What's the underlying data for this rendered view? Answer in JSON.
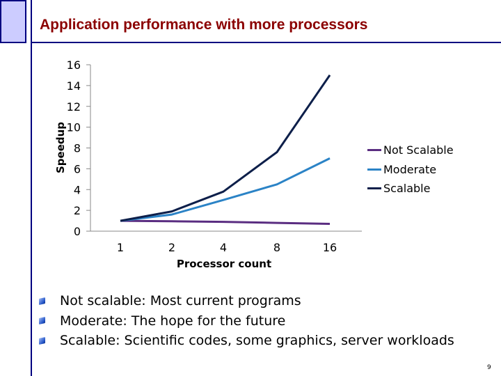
{
  "slide": {
    "title": "Application performance with more processors",
    "page_number": "9",
    "bullets": [
      "Not scalable: Most current programs",
      "Moderate: The hope for the future",
      "Scalable: Scientific codes, some graphics, server workloads"
    ]
  },
  "chart_data": {
    "type": "line",
    "title": "",
    "xlabel": "Processor count",
    "ylabel": "Speedup",
    "categories": [
      "1",
      "2",
      "4",
      "8",
      "16"
    ],
    "ylim": [
      0,
      16
    ],
    "yticks": [
      "0",
      "2",
      "4",
      "6",
      "8",
      "10",
      "12",
      "14",
      "16"
    ],
    "grid": false,
    "legend_position": "right",
    "series": [
      {
        "name": "Not Scalable",
        "values": [
          1,
          0.95,
          0.9,
          0.8,
          0.7
        ],
        "color": "#5a2d81"
      },
      {
        "name": "Moderate",
        "values": [
          1,
          1.6,
          3.0,
          4.5,
          7.0
        ],
        "color": "#2b83c6"
      },
      {
        "name": "Scalable",
        "values": [
          1,
          1.9,
          3.8,
          7.6,
          15.0
        ],
        "color": "#0d1f4a"
      }
    ]
  }
}
